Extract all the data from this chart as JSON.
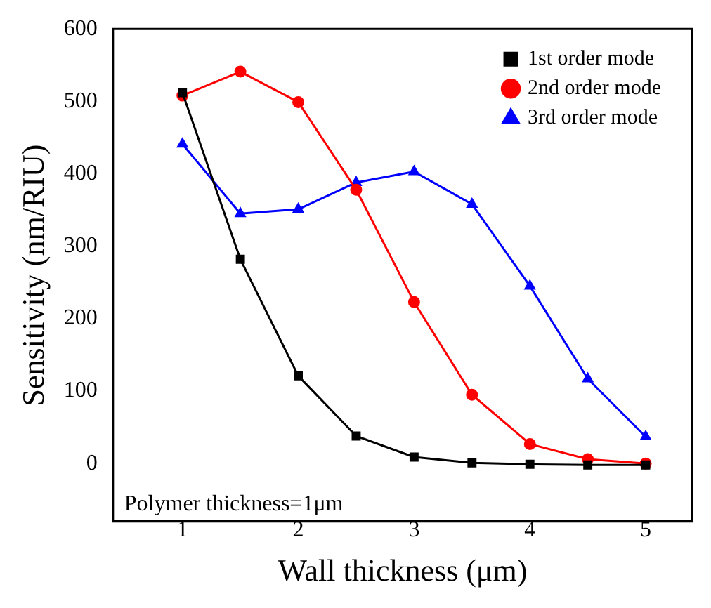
{
  "chart_data": {
    "type": "line",
    "xlabel": "Wall thickness (μm)",
    "ylabel": "Sensitivity (nm/RIU)",
    "x": [
      1,
      1.5,
      2,
      2.5,
      3,
      3.5,
      4,
      4.5,
      5
    ],
    "xlim": [
      0.4,
      5.4
    ],
    "xticks": [
      1,
      2,
      3,
      4,
      5
    ],
    "ylim": [
      -80,
      600
    ],
    "yticks": [
      0,
      100,
      200,
      300,
      400,
      500,
      600
    ],
    "grid": false,
    "legend": "top right",
    "series": [
      {
        "name": "1st order mode",
        "color": "#000000",
        "marker": "square",
        "values": [
          512,
          282,
          121,
          38,
          9,
          1,
          -1,
          -2,
          -2
        ]
      },
      {
        "name": "2nd order mode",
        "color": "#ff0000",
        "marker": "circle",
        "values": [
          508,
          541,
          499,
          378,
          223,
          95,
          27,
          6,
          0
        ]
      },
      {
        "name": "3rd order mode",
        "color": "#0000ff",
        "marker": "triangle",
        "values": [
          441,
          345,
          351,
          388,
          403,
          358,
          245,
          117,
          37
        ]
      }
    ],
    "annotations": [
      "Polymer thickness=1μm"
    ]
  }
}
